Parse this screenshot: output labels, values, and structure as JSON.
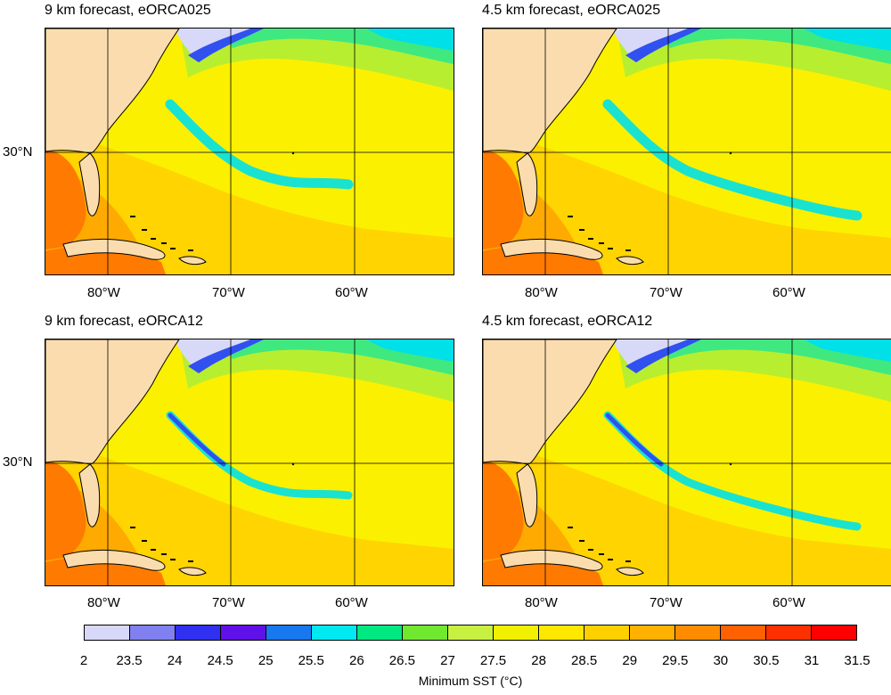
{
  "panels": [
    {
      "title": "9 km forecast, eORCA025"
    },
    {
      "title": "4.5 km forecast, eORCA025"
    },
    {
      "title": "9 km forecast, eORCA12"
    },
    {
      "title": "4.5 km forecast, eORCA12"
    }
  ],
  "lat_label": "30°N",
  "lon_labels": [
    "80°W",
    "70°W",
    "60°W"
  ],
  "colorbar": {
    "title": "Minimum SST (°C)",
    "labels": [
      "2",
      "23.5",
      "24",
      "24.5",
      "25",
      "25.5",
      "26",
      "26.5",
      "27",
      "27.5",
      "28",
      "28.5",
      "29",
      "29.5",
      "30",
      "30.5",
      "31",
      "31.5"
    ],
    "colors": [
      "#d8d8f8",
      "#8080f0",
      "#3030f0",
      "#6010e8",
      "#1878f0",
      "#00e8f0",
      "#00e880",
      "#70e830",
      "#c8f040",
      "#f0f000",
      "#ffe800",
      "#ffd000",
      "#ffb000",
      "#ff8c00",
      "#ff6000",
      "#ff3000",
      "#ff0000"
    ]
  },
  "map_colors": {
    "land": "#fadcae",
    "ocean": "#fbf000",
    "warm": "#ffcf00",
    "warmer": "#ffaa00",
    "hot": "#ff7a00",
    "cool": "#b8ee30",
    "cooler": "#40e880",
    "cold": "#00e0e8",
    "coldest": "#3050f0",
    "shelf": "#d8d8f8"
  }
}
